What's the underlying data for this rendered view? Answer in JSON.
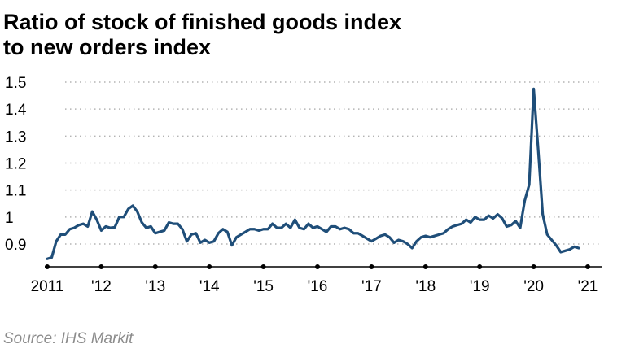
{
  "chart_data": {
    "type": "line",
    "title_lines": [
      "Ratio of stock of finished goods index",
      "to new orders index"
    ],
    "source": "Source: IHS Markit",
    "ylim": [
      0.82,
      1.52
    ],
    "yticks": [
      0.9,
      1,
      1.1,
      1.2,
      1.3,
      1.4,
      1.5
    ],
    "ytick_labels": [
      "0.9",
      "1",
      "1.1",
      "1.2",
      "1.3",
      "1.4",
      "1.5"
    ],
    "xlim": [
      2011,
      2021.25
    ],
    "xticks": [
      2011,
      2012,
      2013,
      2014,
      2015,
      2016,
      2017,
      2018,
      2019,
      2020,
      2021
    ],
    "xtick_labels": [
      "2011",
      "'12",
      "'13",
      "'14",
      "'15",
      "'16",
      "'17",
      "'18",
      "'19",
      "'20",
      "'21"
    ],
    "grid": true,
    "line_color": "#1f4e79",
    "series": [
      {
        "name": "Ratio",
        "values": [
          0.845,
          0.85,
          0.91,
          0.935,
          0.935,
          0.955,
          0.96,
          0.97,
          0.975,
          0.965,
          1.02,
          0.99,
          0.95,
          0.965,
          0.96,
          0.962,
          1.0,
          1.0,
          1.03,
          1.042,
          1.02,
          0.98,
          0.96,
          0.965,
          0.94,
          0.945,
          0.95,
          0.98,
          0.975,
          0.975,
          0.955,
          0.91,
          0.935,
          0.94,
          0.905,
          0.915,
          0.905,
          0.91,
          0.94,
          0.955,
          0.945,
          0.895,
          0.925,
          0.935,
          0.945,
          0.955,
          0.955,
          0.95,
          0.955,
          0.955,
          0.975,
          0.96,
          0.96,
          0.975,
          0.96,
          0.99,
          0.96,
          0.955,
          0.975,
          0.96,
          0.965,
          0.955,
          0.945,
          0.965,
          0.965,
          0.955,
          0.96,
          0.955,
          0.94,
          0.94,
          0.93,
          0.92,
          0.91,
          0.92,
          0.93,
          0.935,
          0.925,
          0.905,
          0.915,
          0.91,
          0.9,
          0.885,
          0.91,
          0.925,
          0.93,
          0.925,
          0.93,
          0.935,
          0.94,
          0.955,
          0.965,
          0.97,
          0.975,
          0.99,
          0.98,
          1.0,
          0.99,
          0.99,
          1.005,
          0.995,
          1.01,
          0.995,
          0.965,
          0.97,
          0.985,
          0.96,
          1.06,
          1.12,
          1.475,
          1.25,
          1.01,
          0.935,
          0.915,
          0.895,
          0.87,
          0.875,
          0.88,
          0.89,
          0.885
        ]
      }
    ]
  }
}
